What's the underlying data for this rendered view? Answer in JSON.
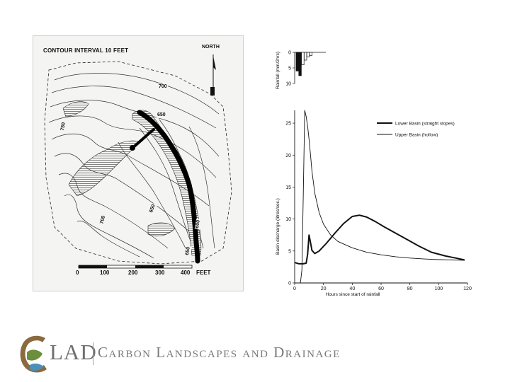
{
  "map": {
    "title": "CONTOUR INTERVAL 10 FEET",
    "north_label": "NORTH",
    "contour_labels": [
      "700",
      "650",
      "750",
      "650",
      "700",
      "650",
      "600"
    ],
    "scale_ticks": [
      "0",
      "100",
      "200",
      "300",
      "400"
    ],
    "scale_unit": "FEET"
  },
  "chart_data": [
    {
      "type": "bar",
      "title": "",
      "ylabel": "Rainfall (mm/2hrs)",
      "ylim": [
        0,
        10
      ],
      "y_inverted": true,
      "yticks": [
        "0",
        "5",
        "10"
      ],
      "x": [
        2,
        4,
        6,
        8,
        10,
        12
      ],
      "values": [
        6,
        7.5,
        4,
        2.5,
        1.5,
        1
      ]
    },
    {
      "type": "line",
      "xlabel": "Hours since start of rainfall",
      "ylabel": "Basin discharge (litres/sec.)",
      "xlim": [
        0,
        120
      ],
      "ylim": [
        0,
        27
      ],
      "xticks": [
        "0",
        "20",
        "40",
        "60",
        "80",
        "100",
        "120"
      ],
      "yticks": [
        "0",
        "5",
        "10",
        "15",
        "20",
        "25"
      ],
      "legend_position": "top-right",
      "series": [
        {
          "name": "Lower Basin (straight slopes)",
          "style": "thick",
          "x": [
            0,
            3,
            6,
            8,
            9,
            10,
            11,
            12,
            14,
            17,
            22,
            28,
            34,
            40,
            45,
            50,
            56,
            62,
            70,
            78,
            86,
            95,
            105,
            112,
            118
          ],
          "y": [
            3.2,
            3.0,
            3.0,
            3.1,
            4.5,
            7.5,
            6.3,
            5.1,
            4.6,
            5.0,
            6.2,
            7.8,
            9.3,
            10.4,
            10.6,
            10.3,
            9.6,
            8.8,
            7.8,
            6.8,
            5.8,
            4.8,
            4.2,
            3.9,
            3.6
          ]
        },
        {
          "name": "Upper Basin (hollow)",
          "style": "thin",
          "x": [
            4,
            5,
            6,
            7,
            8,
            9,
            10,
            11,
            12,
            14,
            17,
            20,
            25,
            30,
            40,
            50,
            60,
            70,
            80,
            90,
            100,
            110,
            118
          ],
          "y": [
            0,
            2,
            14,
            27,
            26,
            24.5,
            22.5,
            20,
            17.5,
            14,
            11,
            9.2,
            7.5,
            6.5,
            5.5,
            4.8,
            4.4,
            4.1,
            3.9,
            3.75,
            3.65,
            3.6,
            3.55
          ]
        }
      ]
    }
  ],
  "footer": {
    "logo_letters": "LAD",
    "brand": "Carbon Landscapes and Drainage"
  }
}
